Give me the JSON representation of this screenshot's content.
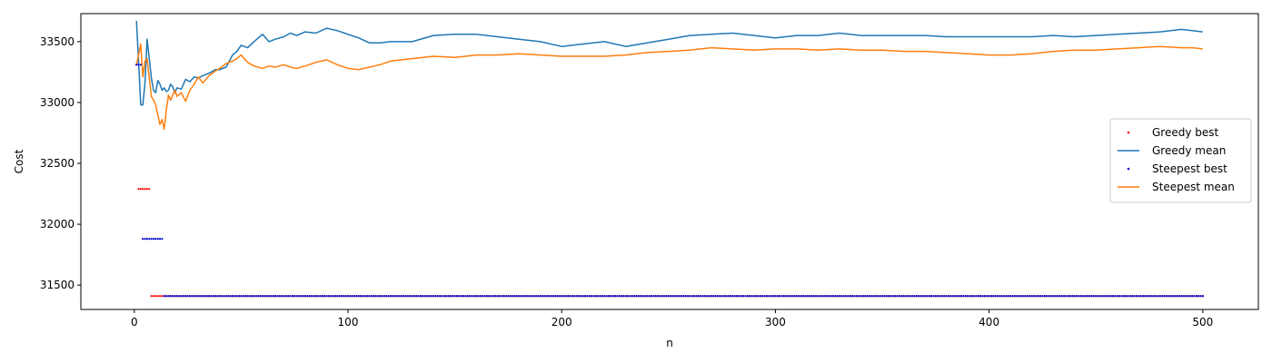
{
  "chart_data": {
    "type": "line",
    "title": "",
    "xlabel": "n",
    "ylabel": "Cost",
    "xlim": [
      -25,
      526
    ],
    "ylim": [
      31300,
      33730
    ],
    "xticks": [
      0,
      100,
      200,
      300,
      400,
      500
    ],
    "yticks": [
      31500,
      32000,
      32500,
      33000,
      33500
    ],
    "grid": false,
    "legend_position": "center-right",
    "series": [
      {
        "name": "Greedy best",
        "kind": "dots",
        "color": "#ff0000",
        "x": [
          1,
          2,
          3,
          4,
          5,
          6,
          7,
          8,
          9,
          10,
          11,
          12,
          13,
          14,
          15,
          500
        ],
        "values": [
          33310,
          32290,
          32290,
          32290,
          32290,
          32290,
          32290,
          31410,
          31410,
          31410,
          31410,
          31410,
          31410,
          31410,
          31410,
          31410
        ]
      },
      {
        "name": "Greedy mean",
        "kind": "line",
        "color": "#1f77b4",
        "x": [
          1,
          2,
          3,
          4,
          5,
          6,
          7,
          8,
          9,
          10,
          11,
          12,
          13,
          14,
          15,
          16,
          17,
          18,
          19,
          20,
          22,
          24,
          26,
          28,
          30,
          32,
          35,
          38,
          40,
          43,
          46,
          48,
          50,
          53,
          56,
          60,
          63,
          66,
          70,
          73,
          76,
          80,
          85,
          90,
          95,
          100,
          105,
          110,
          115,
          120,
          130,
          140,
          150,
          160,
          170,
          180,
          190,
          200,
          210,
          220,
          230,
          240,
          250,
          260,
          270,
          280,
          290,
          300,
          310,
          320,
          330,
          340,
          350,
          360,
          370,
          380,
          390,
          400,
          410,
          420,
          430,
          440,
          450,
          460,
          470,
          480,
          490,
          495,
          500
        ],
        "values": [
          33670,
          33340,
          32980,
          32980,
          33160,
          33520,
          33360,
          33200,
          33100,
          33080,
          33180,
          33150,
          33100,
          33120,
          33090,
          33100,
          33150,
          33130,
          33080,
          33120,
          33110,
          33190,
          33170,
          33210,
          33200,
          33220,
          33240,
          33270,
          33270,
          33290,
          33390,
          33420,
          33470,
          33450,
          33500,
          33560,
          33500,
          33520,
          33540,
          33570,
          33550,
          33580,
          33570,
          33610,
          33590,
          33560,
          33530,
          33490,
          33490,
          33500,
          33500,
          33550,
          33560,
          33560,
          33540,
          33520,
          33500,
          33460,
          33480,
          33500,
          33460,
          33490,
          33520,
          33550,
          33560,
          33570,
          33550,
          33530,
          33550,
          33550,
          33570,
          33550,
          33550,
          33550,
          33550,
          33540,
          33540,
          33540,
          33540,
          33540,
          33550,
          33540,
          33550,
          33560,
          33570,
          33580,
          33600,
          33590,
          33580
        ]
      },
      {
        "name": "Steepest best",
        "kind": "dots",
        "color": "#0000cc",
        "x": [
          1,
          2,
          3,
          4,
          5,
          6,
          7,
          8,
          9,
          10,
          11,
          12,
          13,
          14,
          500
        ],
        "values": [
          33310,
          33310,
          33310,
          31880,
          31880,
          31880,
          31880,
          31880,
          31880,
          31880,
          31880,
          31880,
          31880,
          31410,
          31410
        ]
      },
      {
        "name": "Steepest mean",
        "kind": "line",
        "color": "#ff7f0e",
        "x": [
          1,
          2,
          3,
          4,
          5,
          6,
          7,
          8,
          9,
          10,
          11,
          12,
          13,
          14,
          15,
          16,
          17,
          18,
          19,
          20,
          22,
          24,
          26,
          28,
          30,
          32,
          35,
          38,
          40,
          43,
          46,
          48,
          50,
          53,
          56,
          60,
          63,
          66,
          70,
          73,
          76,
          80,
          85,
          90,
          95,
          100,
          105,
          110,
          115,
          120,
          130,
          140,
          150,
          160,
          170,
          180,
          190,
          200,
          210,
          220,
          230,
          240,
          250,
          260,
          270,
          280,
          290,
          300,
          310,
          320,
          330,
          340,
          350,
          360,
          370,
          380,
          390,
          400,
          410,
          420,
          430,
          440,
          450,
          460,
          470,
          480,
          490,
          495,
          500
        ],
        "values": [
          33310,
          33390,
          33480,
          33210,
          33340,
          33360,
          33200,
          33050,
          33020,
          32980,
          32900,
          32820,
          32860,
          32780,
          32940,
          33060,
          33020,
          33060,
          33100,
          33050,
          33080,
          33010,
          33100,
          33150,
          33210,
          33160,
          33220,
          33260,
          33280,
          33320,
          33340,
          33360,
          33390,
          33330,
          33300,
          33280,
          33300,
          33290,
          33310,
          33290,
          33280,
          33300,
          33330,
          33350,
          33310,
          33280,
          33270,
          33290,
          33310,
          33340,
          33360,
          33380,
          33370,
          33390,
          33390,
          33400,
          33390,
          33380,
          33380,
          33380,
          33390,
          33410,
          33420,
          33430,
          33450,
          33440,
          33430,
          33440,
          33440,
          33430,
          33440,
          33430,
          33430,
          33420,
          33420,
          33410,
          33400,
          33390,
          33390,
          33400,
          33420,
          33430,
          33430,
          33440,
          33450,
          33460,
          33450,
          33450,
          33440
        ]
      }
    ]
  }
}
